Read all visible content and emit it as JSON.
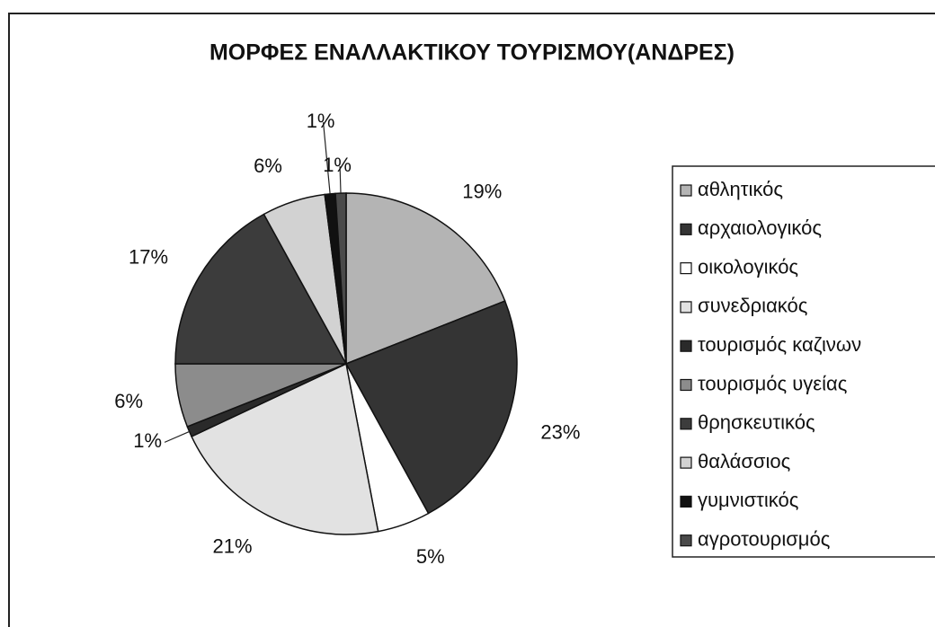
{
  "chart_data": {
    "type": "pie",
    "title": "ΜΟΡΦΕΣ ΕΝΑΛΛΑΚΤΙΚΟΥ ΤΟΥΡΙΣΜΟΥ(ΑΝΔΡΕΣ)",
    "categories": [
      "αθλητικός",
      "αρχαιολογικός",
      "οικολογικός",
      "συνεδριακός",
      "τουρισμός καζινων",
      "τουρισμός υγείας",
      "θρησκευτικός",
      "θαλάσσιος",
      "γυμνιστικός",
      "αγροτουρισμός"
    ],
    "values": [
      19,
      23,
      5,
      21,
      1,
      6,
      17,
      6,
      1,
      1
    ],
    "value_labels": [
      "19%",
      "23%",
      "5%",
      "21%",
      "1%",
      "6%",
      "17%",
      "6%",
      "1%",
      "1%"
    ],
    "colors": [
      "#b4b4b4",
      "#343434",
      "#ffffff",
      "#e2e2e2",
      "#2a2a2a",
      "#8c8c8c",
      "#3c3c3c",
      "#d2d2d2",
      "#111111",
      "#4a4a4a"
    ],
    "legend": "right"
  }
}
